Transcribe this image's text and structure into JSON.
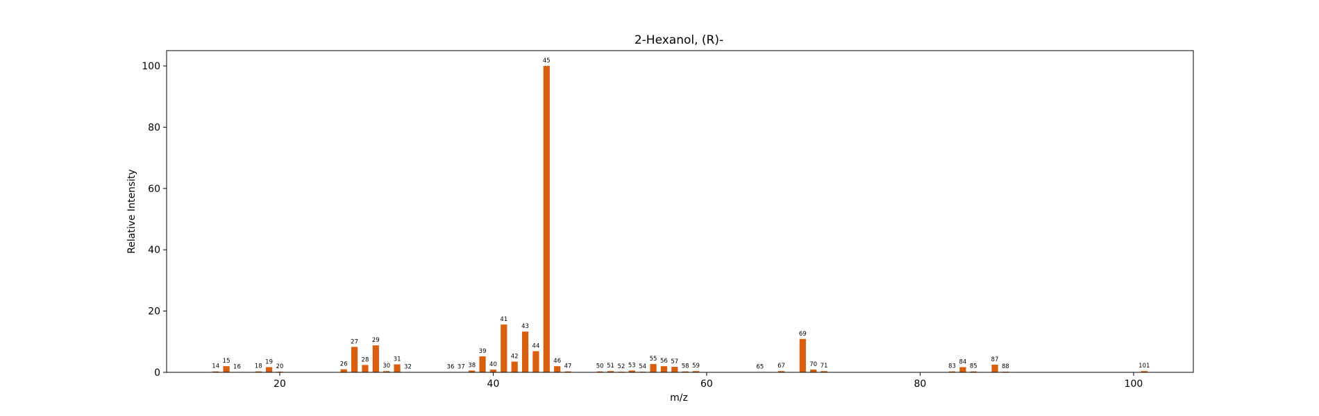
{
  "chart_data": {
    "type": "bar",
    "title": "2-Hexanol, (R)-",
    "xlabel": "m/z",
    "ylabel": "Relative Intensity",
    "xlim": [
      9.4,
      105.6
    ],
    "ylim": [
      0,
      105
    ],
    "xticks": [
      20,
      40,
      60,
      80,
      100
    ],
    "yticks": [
      0,
      20,
      40,
      60,
      80,
      100
    ],
    "bar_color": "#d95f0e",
    "grid": false,
    "legend": "none",
    "x": [
      14,
      15,
      16,
      18,
      19,
      20,
      26,
      27,
      28,
      29,
      30,
      31,
      32,
      36,
      37,
      38,
      39,
      40,
      41,
      42,
      43,
      44,
      45,
      46,
      47,
      50,
      51,
      52,
      53,
      54,
      55,
      56,
      57,
      58,
      59,
      65,
      67,
      69,
      70,
      71,
      83,
      84,
      85,
      87,
      88,
      101
    ],
    "values": [
      0.3,
      2.0,
      0.1,
      0.3,
      1.7,
      0.2,
      1.0,
      8.3,
      2.4,
      8.8,
      0.4,
      2.6,
      0.1,
      0.1,
      0.1,
      0.6,
      5.2,
      0.9,
      15.6,
      3.5,
      13.3,
      6.9,
      100.0,
      2.0,
      0.3,
      0.3,
      0.4,
      0.2,
      0.6,
      0.2,
      2.7,
      2.0,
      1.8,
      0.3,
      0.4,
      0.1,
      0.4,
      10.9,
      0.9,
      0.4,
      0.3,
      1.7,
      0.3,
      2.5,
      0.2,
      0.4
    ]
  }
}
